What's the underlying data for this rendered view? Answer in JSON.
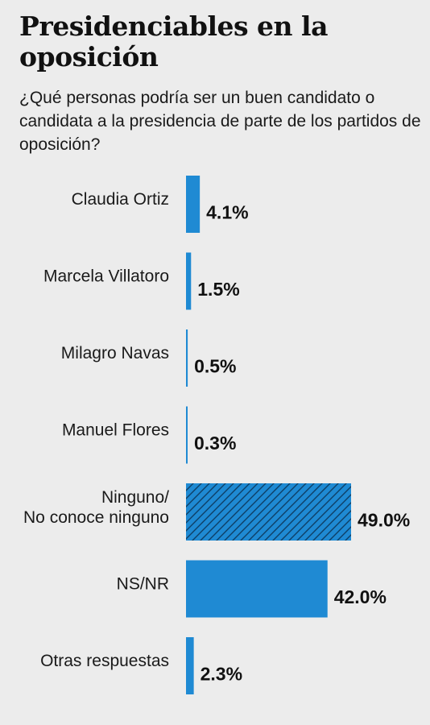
{
  "chart_data": {
    "type": "bar",
    "orientation": "horizontal",
    "title": "Presidenciables en la oposición",
    "subtitle": "¿Qué personas podría ser un buen candidato o candidata a la presidencia de parte de los partidos de oposición?",
    "categories": [
      [
        "Claudia Ortiz"
      ],
      [
        "Marcela Villatoro"
      ],
      [
        "Milagro Navas"
      ],
      [
        "Manuel Flores"
      ],
      [
        "Ninguno/",
        "No conoce ninguno"
      ],
      [
        "NS/NR"
      ],
      [
        "Otras respuestas"
      ]
    ],
    "values": [
      4.1,
      1.5,
      0.5,
      0.3,
      49.0,
      42.0,
      2.3
    ],
    "value_labels": [
      "4.1%",
      "1.5%",
      "0.5%",
      "0.3%",
      "49.0%",
      "42.0%",
      "2.3%"
    ],
    "patterned": [
      false,
      false,
      false,
      false,
      true,
      false,
      false
    ],
    "xlim": [
      0,
      100
    ],
    "grid": false,
    "colors": {
      "bar": "#1f8ad3",
      "hatch_line": "#0e3f66",
      "text": "#111111",
      "background": "#ececec"
    }
  }
}
